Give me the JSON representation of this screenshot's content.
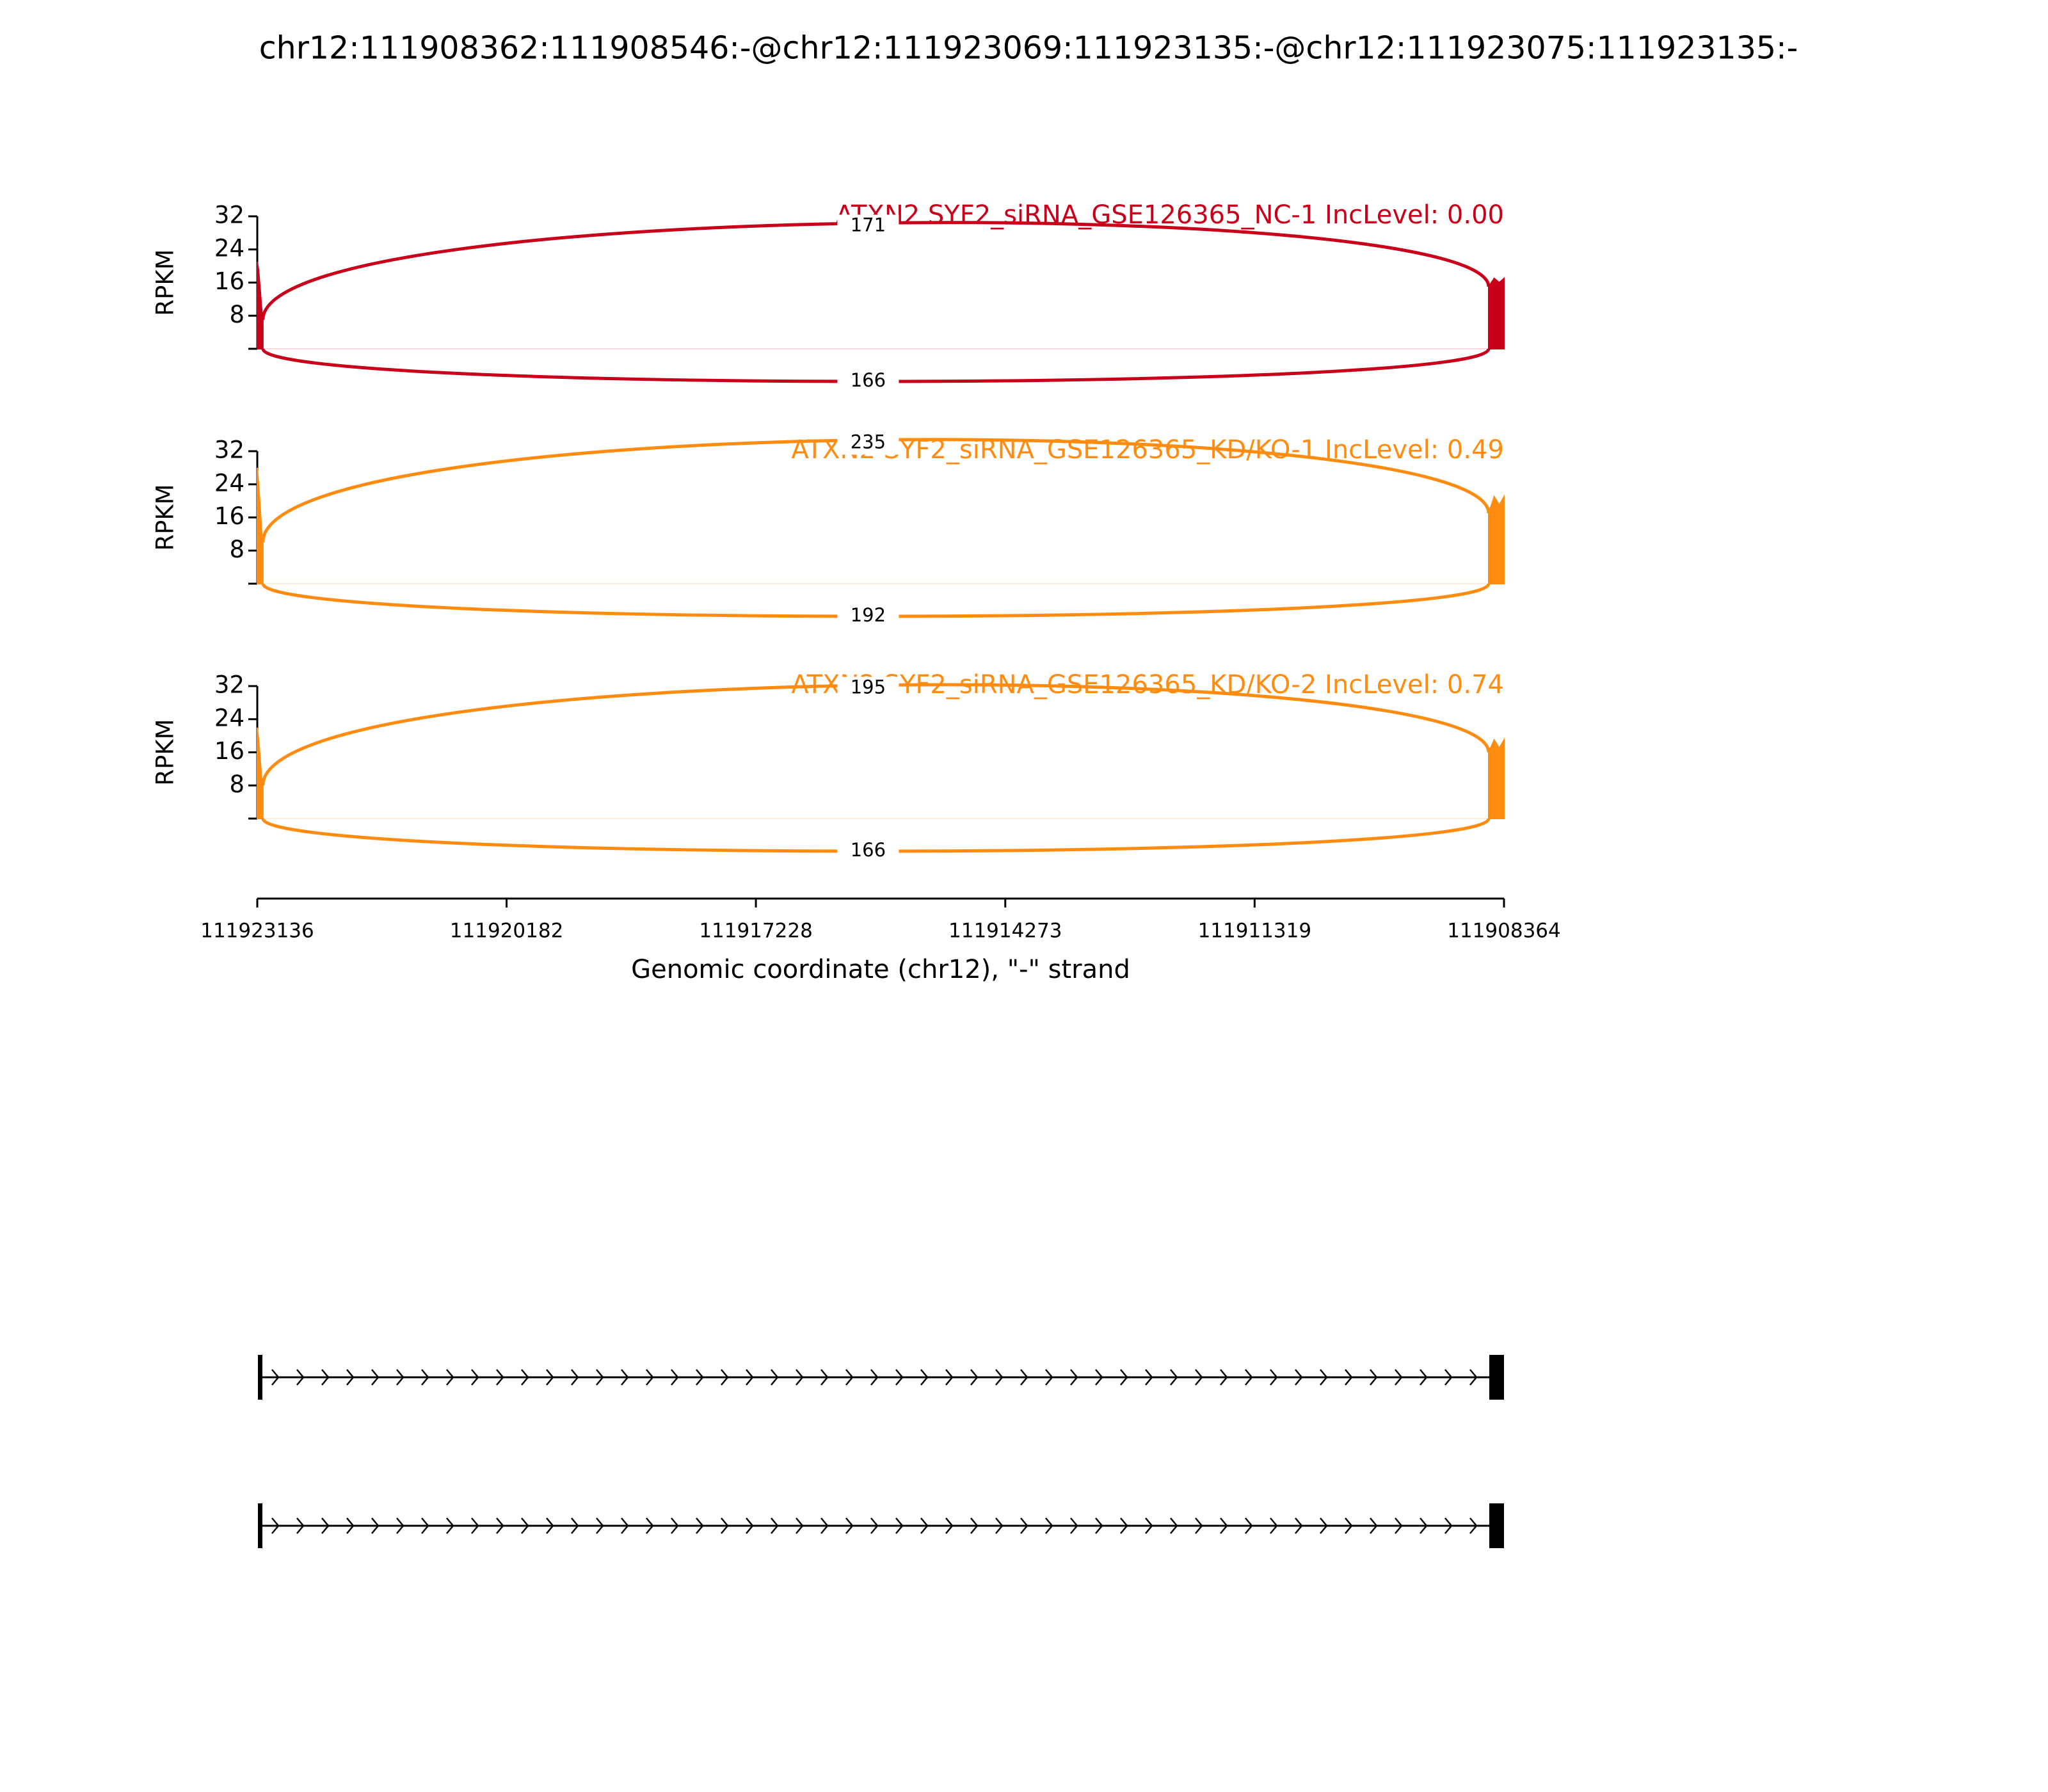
{
  "chart_data": [
    {
      "type": "sashimi",
      "suptitle": "chr12:111908362:111908546:-@chr12:111923069:111923135:-@chr12:111923075:111923135:-",
      "title": "ATXN2 SYF2_siRNA_GSE126365_NC-1 IncLevel: 0.00",
      "color": "#c8001a",
      "ylabel": "RPKM",
      "ylim": [
        0,
        32
      ],
      "yticks": [
        8,
        16,
        24,
        32
      ],
      "x": [
        111923136,
        111923120,
        111923100,
        111923085,
        111923069,
        111915000,
        111908546,
        111908480,
        111908420,
        111908364
      ],
      "values": [
        21,
        19,
        14,
        10,
        7,
        null,
        15,
        17,
        16,
        17
      ],
      "junctions": [
        171,
        166
      ]
    },
    {
      "type": "sashimi",
      "title": "ATXN2 SYF2_siRNA_GSE126365_KD/KO-1 IncLevel: 0.49",
      "color": "#ff8c10",
      "ylabel": "RPKM",
      "ylim": [
        0,
        32
      ],
      "yticks": [
        8,
        16,
        24,
        32
      ],
      "x": [
        111923136,
        111923120,
        111923100,
        111923085,
        111923069,
        111915000,
        111908546,
        111908480,
        111908420,
        111908364
      ],
      "values": [
        28,
        24,
        18,
        13,
        10,
        null,
        17,
        21,
        19,
        21
      ],
      "junctions": [
        235,
        192
      ]
    },
    {
      "type": "sashimi",
      "title": "ATXN2 SYF2_siRNA_GSE126365_KD/KO-2 IncLevel: 0.74",
      "color": "#ff8c10",
      "ylabel": "RPKM",
      "ylim": [
        0,
        32
      ],
      "yticks": [
        8,
        16,
        24,
        32
      ],
      "x": [
        111923136,
        111923120,
        111923100,
        111923085,
        111923069,
        111915000,
        111908546,
        111908480,
        111908420,
        111908364
      ],
      "values": [
        22,
        19,
        14,
        10,
        8,
        null,
        16,
        19,
        17,
        19
      ],
      "junctions": [
        195,
        166
      ],
      "xlim": [
        111923136,
        111908364
      ],
      "xticks": [
        111923136,
        111920182,
        111917228,
        111914273,
        111911319,
        111908364
      ],
      "xlabel": "Genomic coordinate (chr12), \"-\" strand"
    }
  ]
}
